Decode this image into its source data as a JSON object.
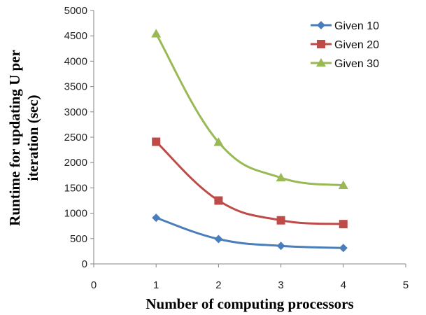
{
  "chart_data": {
    "type": "line",
    "title": "",
    "xlabel": "Number of computing processors",
    "ylabel_lines": [
      "Runtime for updating U per",
      "iteration (sec)"
    ],
    "xlim": [
      0,
      5
    ],
    "ylim": [
      0,
      5000
    ],
    "x_ticks": [
      "0",
      "1",
      "2",
      "3",
      "4",
      "5"
    ],
    "y_ticks": [
      "0",
      "500",
      "1000",
      "1500",
      "2000",
      "2500",
      "3000",
      "3500",
      "4000",
      "4500",
      "5000"
    ],
    "x": [
      1,
      2,
      3,
      4
    ],
    "series": [
      {
        "name": "Given 10",
        "values": [
          910,
          490,
          355,
          315
        ],
        "color": "#4a7ebb",
        "marker": "diamond"
      },
      {
        "name": "Given 20",
        "values": [
          2410,
          1250,
          860,
          785
        ],
        "color": "#be4b48",
        "marker": "square"
      },
      {
        "name": "Given 30",
        "values": [
          4540,
          2400,
          1700,
          1550
        ],
        "color": "#98b954",
        "marker": "triangle"
      }
    ],
    "legend_position": "top-right",
    "grid": false
  }
}
